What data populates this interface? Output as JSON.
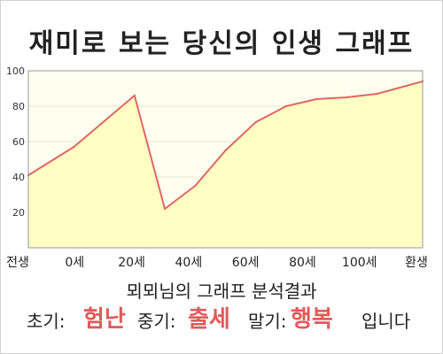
{
  "title": "재미로 보는 당신의 인생 그래프",
  "analysis": {
    "heading": "뫼뫼님의 그래프 분석결과",
    "early_label": "초기:",
    "early_value": "험난",
    "middle_label": "중기:",
    "middle_value": "출세",
    "late_label": "말기:",
    "late_value": "행복",
    "suffix": "입니다",
    "highlight_color": "#e05a5a"
  },
  "chart_data": {
    "type": "area",
    "title": "",
    "xlabel": "",
    "ylabel": "",
    "x_tick_labels": [
      "전생",
      "0세",
      "20세",
      "40세",
      "60세",
      "80세",
      "100세",
      "환생"
    ],
    "x": [
      -15,
      0,
      20,
      30,
      40,
      50,
      60,
      70,
      80,
      90,
      100,
      115
    ],
    "y": [
      41,
      57,
      86,
      22,
      35,
      55,
      71,
      80,
      84,
      85,
      87,
      94
    ],
    "ylim": [
      0,
      100
    ],
    "y_ticks": [
      20,
      40,
      60,
      80,
      100
    ],
    "grid": true,
    "line_color": "#e06666",
    "fill_color": "#ffffc4",
    "background_color": "#fffff0"
  }
}
